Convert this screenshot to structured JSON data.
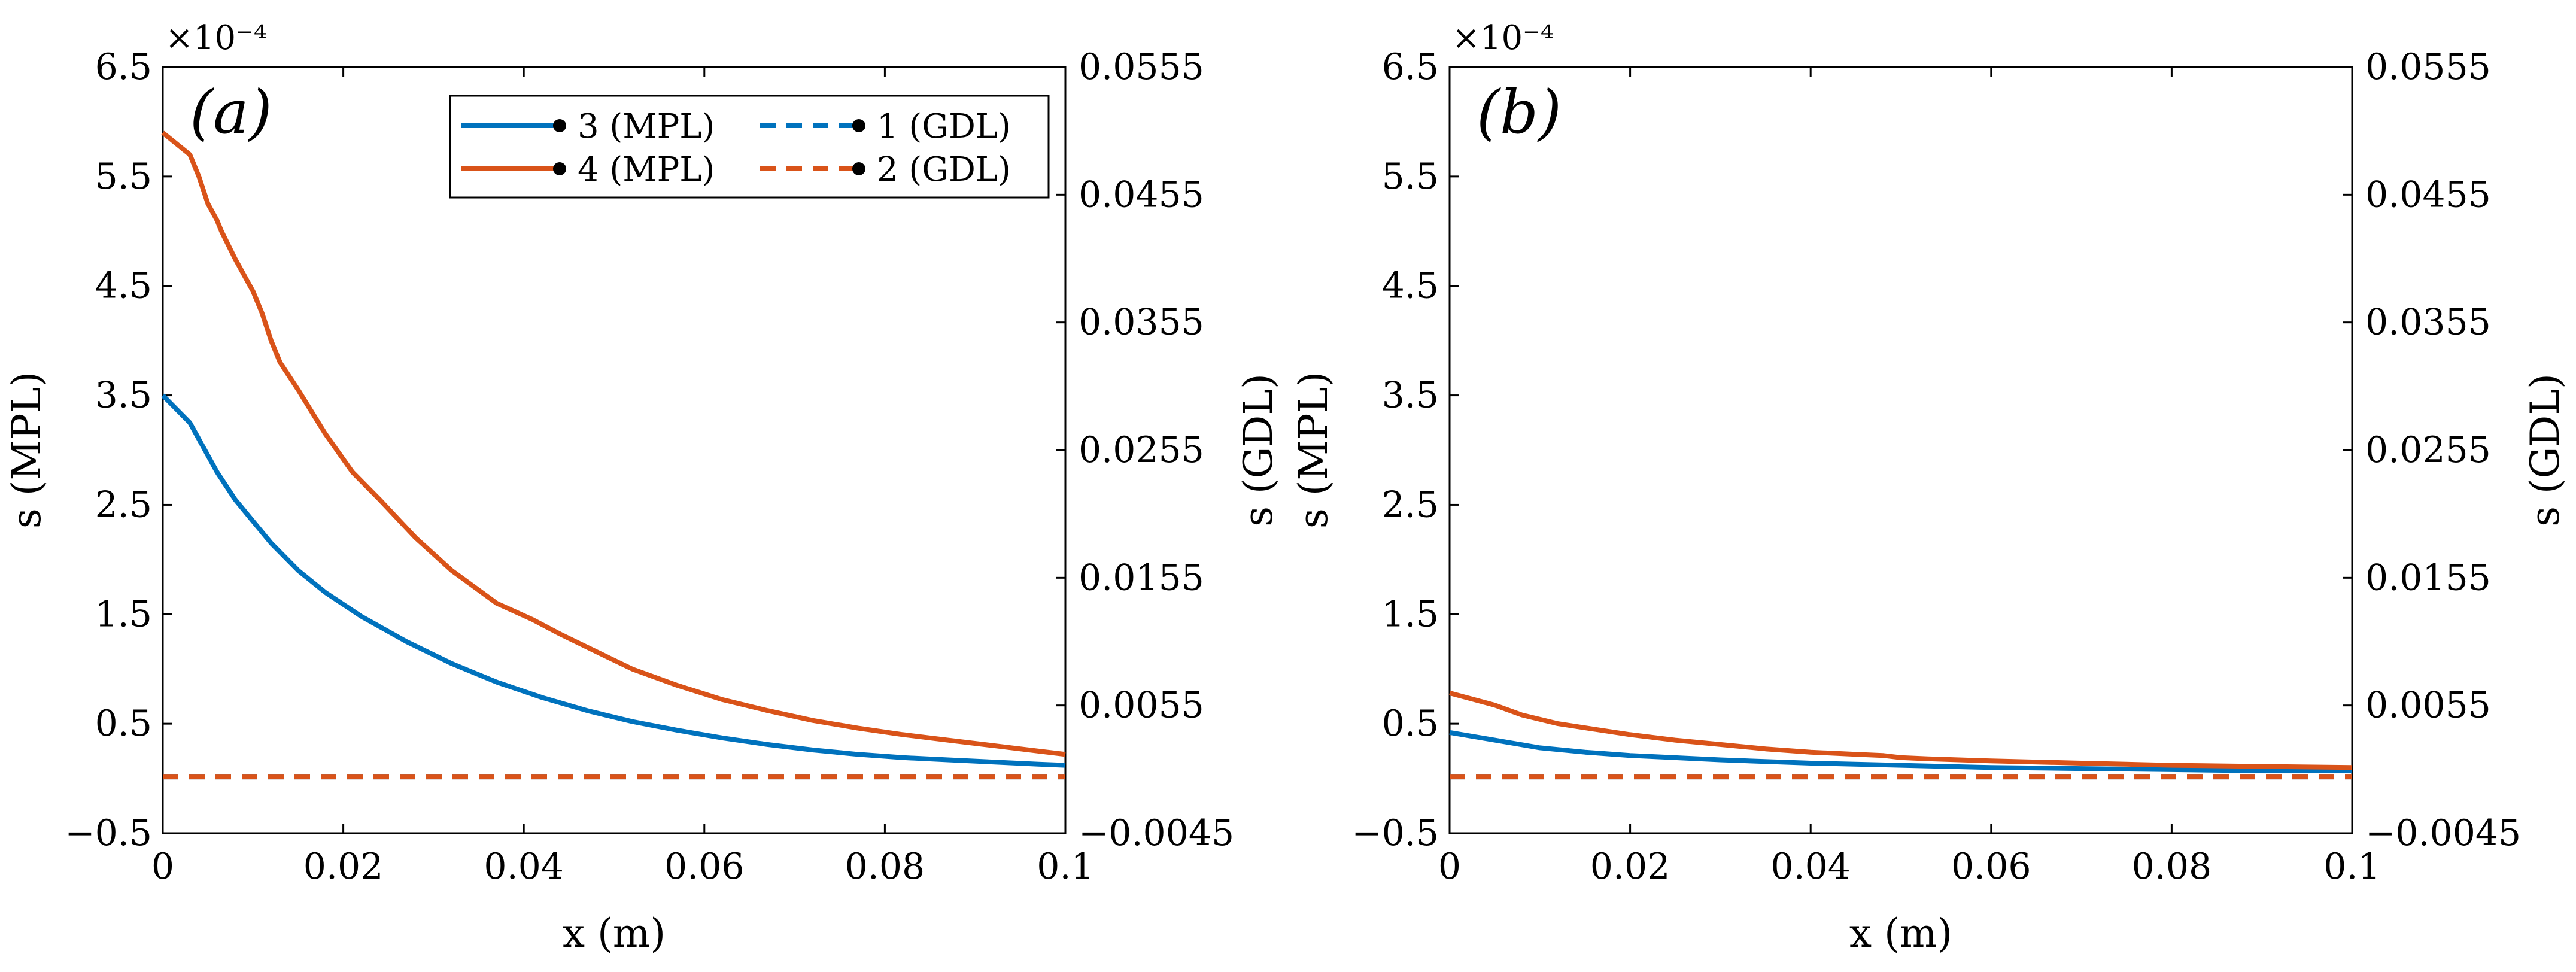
{
  "colors": {
    "blue": "#0072BD",
    "orange": "#D95319",
    "axis": "#000000"
  },
  "legend": [
    {
      "label": "3 (MPL)",
      "color": "#0072BD",
      "style": "solid"
    },
    {
      "label": "1 (GDL)",
      "color": "#0072BD",
      "style": "dashed"
    },
    {
      "label": "4 (MPL)",
      "color": "#D95319",
      "style": "solid"
    },
    {
      "label": "2 (GDL)",
      "color": "#D95319",
      "style": "dashed"
    }
  ],
  "chart_data": [
    {
      "type": "line",
      "panel_label": "(a)",
      "xlabel": "x (m)",
      "ylabel_left": "s (MPL)",
      "ylabel_right": "s (GDL)",
      "y_exponent": "×10⁻⁴",
      "xlim": [
        0,
        0.1
      ],
      "ylim_left": [
        -0.5,
        6.5
      ],
      "ylim_right": [
        -0.0045,
        0.0555
      ],
      "x_ticks": [
        "0",
        "0.02",
        "0.04",
        "0.06",
        "0.08",
        "0.1"
      ],
      "y_ticks_left": [
        "−0.5",
        "0.5",
        "1.5",
        "2.5",
        "3.5",
        "4.5",
        "5.5",
        "6.5"
      ],
      "y_ticks_right": [
        "−0.0045",
        "0.0055",
        "0.0155",
        "0.0255",
        "0.0355",
        "0.0455",
        "0.0555"
      ],
      "legend_position": "top-right",
      "series": [
        {
          "name": "3 (MPL)",
          "axis": "left",
          "color": "#0072BD",
          "style": "solid",
          "x": [
            0,
            0.003,
            0.006,
            0.008,
            0.01,
            0.012,
            0.015,
            0.018,
            0.022,
            0.027,
            0.032,
            0.037,
            0.042,
            0.047,
            0.052,
            0.057,
            0.062,
            0.067,
            0.072,
            0.077,
            0.082,
            0.087,
            0.092,
            0.097,
            0.1
          ],
          "y": [
            3.5,
            3.25,
            2.8,
            2.55,
            2.35,
            2.15,
            1.9,
            1.7,
            1.48,
            1.25,
            1.05,
            0.88,
            0.74,
            0.62,
            0.52,
            0.44,
            0.37,
            0.31,
            0.26,
            0.22,
            0.19,
            0.17,
            0.15,
            0.13,
            0.12
          ]
        },
        {
          "name": "4 (MPL)",
          "axis": "left",
          "color": "#D95319",
          "style": "solid",
          "x": [
            0,
            0.003,
            0.004,
            0.005,
            0.006,
            0.0065,
            0.008,
            0.01,
            0.011,
            0.012,
            0.013,
            0.015,
            0.018,
            0.021,
            0.024,
            0.028,
            0.032,
            0.037,
            0.041,
            0.044,
            0.048,
            0.052,
            0.057,
            0.062,
            0.067,
            0.072,
            0.077,
            0.082,
            0.087,
            0.092,
            0.097,
            0.1
          ],
          "y": [
            5.9,
            5.7,
            5.5,
            5.25,
            5.1,
            5.0,
            4.75,
            4.45,
            4.25,
            4.0,
            3.8,
            3.55,
            3.15,
            2.8,
            2.55,
            2.2,
            1.9,
            1.6,
            1.45,
            1.32,
            1.16,
            1.0,
            0.85,
            0.72,
            0.62,
            0.53,
            0.46,
            0.4,
            0.35,
            0.3,
            0.25,
            0.22
          ]
        },
        {
          "name": "1 (GDL)",
          "axis": "right",
          "color": "#0072BD",
          "style": "dashed",
          "x": [
            0,
            0.1
          ],
          "y": [
            -0.0001,
            -0.0001
          ]
        },
        {
          "name": "2 (GDL)",
          "axis": "right",
          "color": "#D95319",
          "style": "dashed",
          "x": [
            0,
            0.1
          ],
          "y": [
            -0.0001,
            -0.0001
          ]
        }
      ]
    },
    {
      "type": "line",
      "panel_label": "(b)",
      "xlabel": "x (m)",
      "ylabel_left": "s (MPL)",
      "ylabel_right": "s (GDL)",
      "y_exponent": "×10⁻⁴",
      "xlim": [
        0,
        0.1
      ],
      "ylim_left": [
        -0.5,
        6.5
      ],
      "ylim_right": [
        -0.0045,
        0.0555
      ],
      "x_ticks": [
        "0",
        "0.02",
        "0.04",
        "0.06",
        "0.08",
        "0.1"
      ],
      "y_ticks_left": [
        "−0.5",
        "0.5",
        "1.5",
        "2.5",
        "3.5",
        "4.5",
        "5.5",
        "6.5"
      ],
      "y_ticks_right": [
        "−0.0045",
        "0.0055",
        "0.0155",
        "0.0255",
        "0.0355",
        "0.0455",
        "0.0555"
      ],
      "series": [
        {
          "name": "3 (MPL)",
          "axis": "left",
          "color": "#0072BD",
          "style": "solid",
          "x": [
            0,
            0.005,
            0.01,
            0.015,
            0.02,
            0.03,
            0.04,
            0.05,
            0.06,
            0.07,
            0.08,
            0.09,
            0.1
          ],
          "y": [
            0.42,
            0.35,
            0.28,
            0.24,
            0.21,
            0.17,
            0.14,
            0.12,
            0.1,
            0.09,
            0.08,
            0.07,
            0.07
          ]
        },
        {
          "name": "4 (MPL)",
          "axis": "left",
          "color": "#D95319",
          "style": "solid",
          "x": [
            0,
            0.005,
            0.008,
            0.012,
            0.016,
            0.02,
            0.025,
            0.03,
            0.035,
            0.04,
            0.045,
            0.048,
            0.05,
            0.053,
            0.06,
            0.07,
            0.08,
            0.09,
            0.1
          ],
          "y": [
            0.78,
            0.67,
            0.58,
            0.5,
            0.45,
            0.4,
            0.35,
            0.31,
            0.27,
            0.24,
            0.22,
            0.21,
            0.19,
            0.18,
            0.16,
            0.14,
            0.12,
            0.11,
            0.1
          ]
        },
        {
          "name": "1 (GDL)",
          "axis": "right",
          "color": "#0072BD",
          "style": "dashed",
          "x": [
            0,
            0.1
          ],
          "y": [
            -0.0001,
            -0.0001
          ]
        },
        {
          "name": "2 (GDL)",
          "axis": "right",
          "color": "#D95319",
          "style": "dashed",
          "x": [
            0,
            0.1
          ],
          "y": [
            -0.0001,
            -0.0001
          ]
        }
      ]
    }
  ]
}
